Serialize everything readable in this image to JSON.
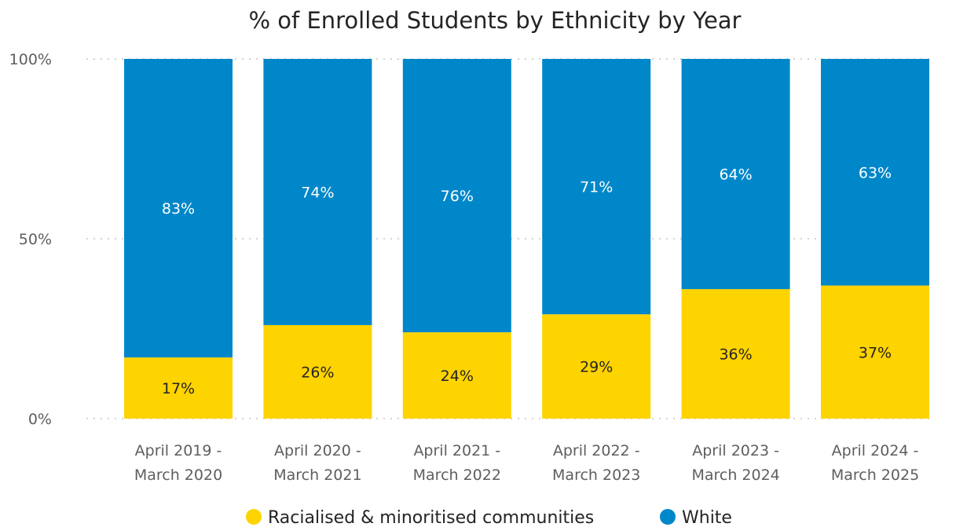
{
  "chart_data": {
    "type": "bar",
    "stacked": true,
    "title": "% of Enrolled Students by Ethnicity by Year",
    "categories": [
      [
        "April 2019 -",
        "March 2020"
      ],
      [
        "April 2020 -",
        "March 2021"
      ],
      [
        "April 2021 -",
        "March 2022"
      ],
      [
        "April 2022 -",
        "March 2023"
      ],
      [
        "April 2023 -",
        "March 2024"
      ],
      [
        "April 2024 -",
        "March 2025"
      ]
    ],
    "series": [
      {
        "name": "Racialised & minoritised communities",
        "color": "#fdd300",
        "label_style": "dark",
        "values": [
          17,
          26,
          24,
          29,
          36,
          37
        ],
        "labels": [
          "17%",
          "26%",
          "24%",
          "29%",
          "36%",
          "37%"
        ]
      },
      {
        "name": "White",
        "color": "#0087c9",
        "label_style": "white",
        "values": [
          83,
          74,
          76,
          71,
          64,
          63
        ],
        "labels": [
          "83%",
          "74%",
          "76%",
          "71%",
          "64%",
          "63%"
        ]
      }
    ],
    "ylim": [
      0,
      100
    ],
    "yticks": [
      0,
      50,
      100
    ],
    "ytick_labels": [
      "0%",
      "50%",
      "100%"
    ],
    "grid": true,
    "legend_position": "bottom-center"
  }
}
